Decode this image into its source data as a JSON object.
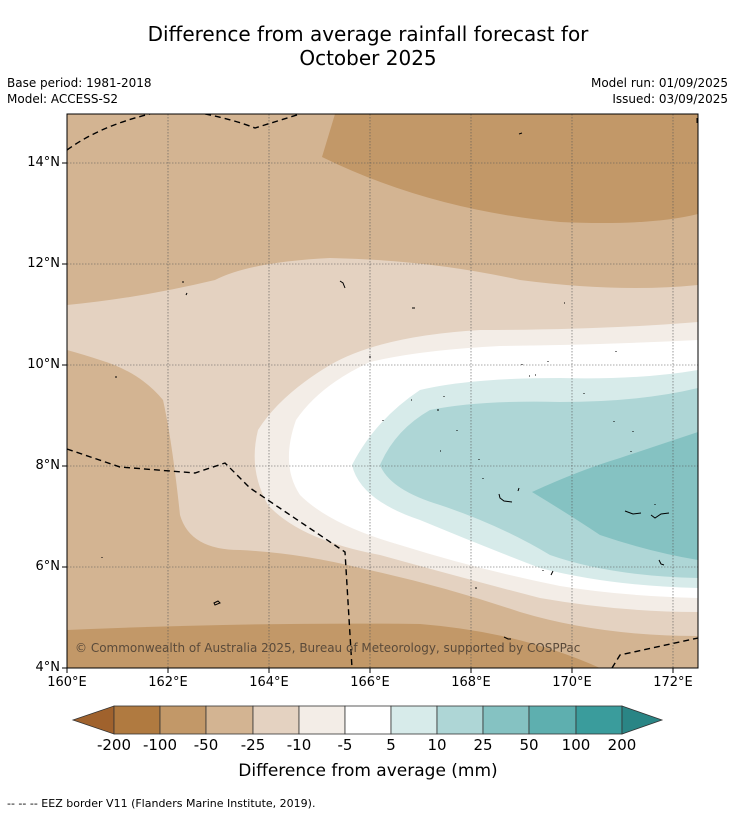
{
  "title_line1": "Difference from average rainfall forecast for",
  "title_line2": "October 2025",
  "base_period": "Base period: 1981-2018",
  "model": "Model: ACCESS-S2",
  "model_run": "Model run: 01/09/2025",
  "issued": "Issued: 03/09/2025",
  "copyright": "© Commonwealth of Australia 2025, Bureau of Meteorology, supported by COSPPac",
  "colorbar_title": "Difference from average (mm)",
  "footer": "-- -- -- EEZ border V11 (Flanders Marine Institute, 2019).",
  "y_ticks": [
    "14°N",
    "12°N",
    "10°N",
    "8°N",
    "6°N",
    "4°N"
  ],
  "x_ticks": [
    "160°E",
    "162°E",
    "164°E",
    "166°E",
    "168°E",
    "170°E",
    "172°E"
  ],
  "colorbar_ticks": [
    "-200",
    "-100",
    "-50",
    "-25",
    "-10",
    "-5",
    "5",
    "10",
    "25",
    "50",
    "100",
    "200"
  ],
  "colorbar_colors": [
    "#a0622d",
    "#b07a40",
    "#c29868",
    "#d3b492",
    "#e4d2c1",
    "#f3ede7",
    "#ffffff",
    "#d7ebea",
    "#aed6d6",
    "#85c2c2",
    "#5eafaf",
    "#3a9c9c",
    "#2a8585"
  ],
  "map": {
    "lon_range": [
      160,
      172.5
    ],
    "lat_range": [
      4,
      15
    ],
    "regions": [
      {
        "category": "-50 to -25",
        "color": "#d3b492"
      },
      {
        "category": "-100 to -50",
        "color": "#c29868"
      },
      {
        "category": "-25 to -10",
        "color": "#e4d2c1"
      },
      {
        "category": "-10 to -5",
        "color": "#f3ede7"
      },
      {
        "category": "-5 to 5",
        "color": "#ffffff"
      },
      {
        "category": "5 to 10",
        "color": "#d7ebea"
      },
      {
        "category": "10 to 25",
        "color": "#aed6d6"
      },
      {
        "category": "25 to 50",
        "color": "#85c2c2"
      }
    ]
  }
}
